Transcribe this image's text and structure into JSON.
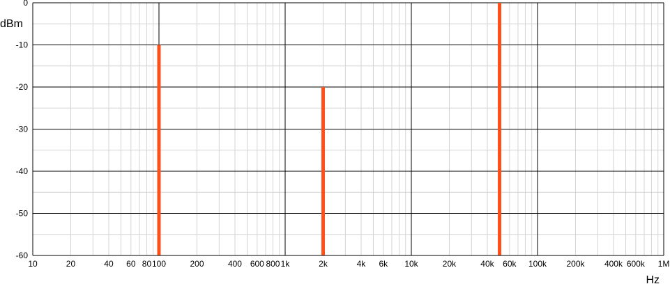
{
  "chart_data": {
    "type": "bar",
    "title": "",
    "xlabel": "Hz",
    "ylabel": "dBm",
    "x_scale": "log",
    "xlim": [
      10,
      1000000
    ],
    "ylim": [
      -60,
      0
    ],
    "grid": true,
    "bar_color": "#ff5019",
    "x_ticks": [
      {
        "value": 10,
        "label": "10"
      },
      {
        "value": 20,
        "label": "20"
      },
      {
        "value": 40,
        "label": "40"
      },
      {
        "value": 60,
        "label": "60"
      },
      {
        "value": 80,
        "label": "80"
      },
      {
        "value": 100,
        "label": "100"
      },
      {
        "value": 200,
        "label": "200"
      },
      {
        "value": 400,
        "label": "400"
      },
      {
        "value": 600,
        "label": "600"
      },
      {
        "value": 800,
        "label": "800"
      },
      {
        "value": 1000,
        "label": "1k"
      },
      {
        "value": 2000,
        "label": "2k"
      },
      {
        "value": 4000,
        "label": "4k"
      },
      {
        "value": 6000,
        "label": "6k"
      },
      {
        "value": 10000,
        "label": "10k"
      },
      {
        "value": 20000,
        "label": "20k"
      },
      {
        "value": 40000,
        "label": "40k"
      },
      {
        "value": 60000,
        "label": "60k"
      },
      {
        "value": 100000,
        "label": "100k"
      },
      {
        "value": 200000,
        "label": "200k"
      },
      {
        "value": 400000,
        "label": "400k"
      },
      {
        "value": 600000,
        "label": "600k"
      },
      {
        "value": 1000000,
        "label": "1M"
      }
    ],
    "y_ticks": [
      {
        "value": 0,
        "label": "0"
      },
      {
        "value": -10,
        "label": "-10"
      },
      {
        "value": -20,
        "label": "-20"
      },
      {
        "value": -30,
        "label": "-30"
      },
      {
        "value": -40,
        "label": "-40"
      },
      {
        "value": -50,
        "label": "-50"
      },
      {
        "value": -60,
        "label": "-60"
      }
    ],
    "x": [
      100,
      2000,
      50000
    ],
    "values": [
      -10,
      -20,
      0
    ]
  }
}
